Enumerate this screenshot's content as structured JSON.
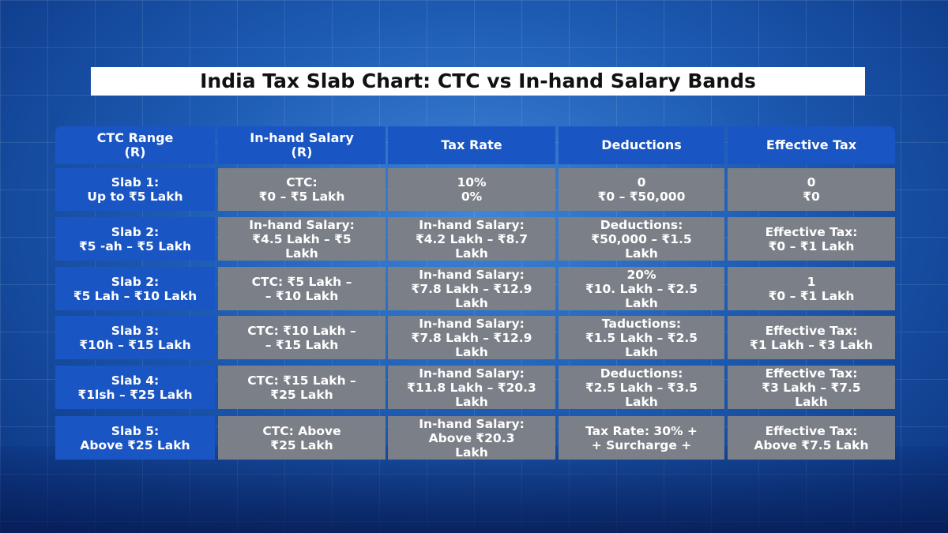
{
  "header": {
    "title": "India Tax Slab Chart: CTC vs In-hand Salary Bands"
  },
  "table": {
    "columns": [
      [
        "CTC Range",
        "(R)"
      ],
      [
        "In-hand Salary",
        "(R)"
      ],
      [
        "Tax Rate"
      ],
      [
        "Deductions"
      ],
      [
        "Effective Tax"
      ]
    ],
    "rows": [
      [
        [
          "Slab 1:",
          "Up to ₹5 Lakh"
        ],
        [
          "CTC:",
          "₹0 – ₹5 Lakh"
        ],
        [
          "10%",
          "0%"
        ],
        [
          "0",
          "₹0 – ₹50,000"
        ],
        [
          "0",
          "₹0"
        ]
      ],
      [
        [
          "Slab 2:",
          "₹5 -ah – ₹5 Lakh"
        ],
        [
          "In-hand Salary:",
          "₹4.5 Lakh – ₹5",
          "Lakh"
        ],
        [
          "In-hand Salary:",
          "₹4.2 Lakh – ₹8.7",
          "Lakh"
        ],
        [
          "Deductions:",
          "₹50,000 – ₹1.5",
          "Lakh"
        ],
        [
          "Effective Tax:",
          "₹0 – ₹1 Lakh"
        ]
      ],
      [
        [
          "Slab 2:",
          "₹5 Lah – ₹10 Lakh"
        ],
        [
          "CTC: ₹5 Lakh –",
          "– ₹10 Lakh"
        ],
        [
          "In-hand Salary:",
          "₹7.8 Lakh – ₹12.9",
          "Lakh"
        ],
        [
          "20%",
          "₹10. Lakh – ₹2.5",
          "Lakh"
        ],
        [
          "1",
          "₹0 – ₹1 Lakh"
        ]
      ],
      [
        [
          "Slab 3:",
          "₹10h – ₹15 Lakh"
        ],
        [
          "CTC: ₹10 Lakh –",
          "– ₹15 Lakh"
        ],
        [
          "In-hand Salary:",
          "₹7.8 Lakh – ₹12.9",
          "Lakh"
        ],
        [
          "Taductions:",
          "₹1.5 Lakh – ₹2.5",
          "Lakh"
        ],
        [
          "Effective Tax:",
          "₹1 Lakh – ₹3 Lakh"
        ]
      ],
      [
        [
          "Slab 4:",
          "₹1lsh – ₹25 Lakh"
        ],
        [
          "CTC: ₹15 Lakh –",
          "₹25 Lakh"
        ],
        [
          "In-hand Salary:",
          "₹11.8 Lakh – ₹20.3",
          "Lakh"
        ],
        [
          "Deductions:",
          "₹2.5 Lakh – ₹3.5",
          "Lakh"
        ],
        [
          "Effective Tax:",
          "₹3 Lakh – ₹7.5",
          "Lakh"
        ]
      ],
      [
        [
          "Slab 5:",
          "Above ₹25 Lakh"
        ],
        [
          "CTC: Above",
          "₹25 Lakh"
        ],
        [
          "In-hand Salary:",
          "Above ₹20.3",
          "Lakh"
        ],
        [
          "Tax Rate: 30% +",
          "+ Surcharge +"
        ],
        [
          "Effective Tax:",
          "Above ₹7.5 Lakh"
        ]
      ]
    ]
  }
}
